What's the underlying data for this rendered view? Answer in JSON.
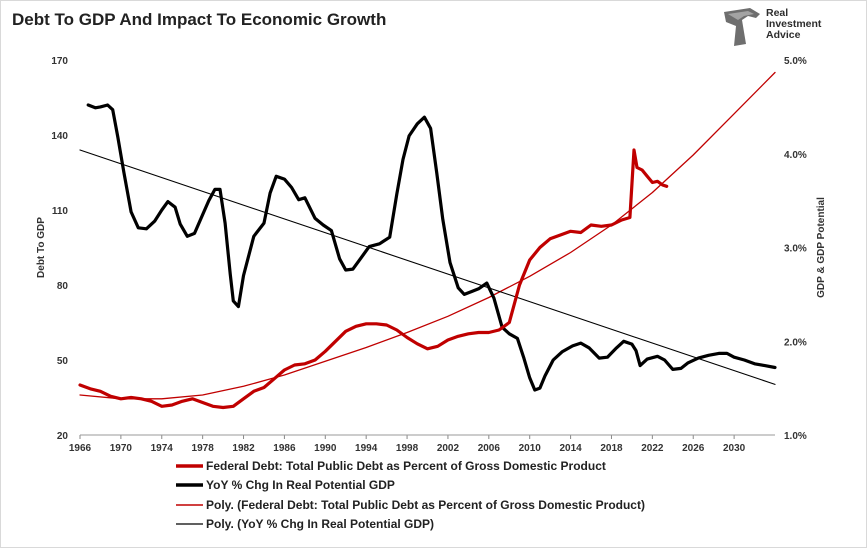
{
  "title": "Debt To GDP And Impact To Economic Growth",
  "logo": {
    "line1": "Real",
    "line2": "Investment",
    "line3": "Advice",
    "icon": "eagle-head-icon"
  },
  "colors": {
    "debt": "#c00000",
    "growth": "#000000",
    "debtTrend": "#c00000",
    "growthTrend": "#000000",
    "grid": "#d9d9d9"
  },
  "chart_data": {
    "type": "line",
    "title": "Debt To GDP And Impact To Economic Growth",
    "xlabel": "",
    "ylabel": "Debt To GDP",
    "y2label": "GDP & GDP Potential",
    "xlim": [
      1966,
      2034
    ],
    "ylim": [
      20,
      170
    ],
    "y2lim": [
      0.01,
      0.05
    ],
    "x_ticks": [
      1966,
      1970,
      1974,
      1978,
      1982,
      1986,
      1990,
      1994,
      1998,
      2002,
      2006,
      2010,
      2014,
      2018,
      2022,
      2026,
      2030
    ],
    "y_ticks": [
      20,
      50,
      80,
      110,
      140,
      170
    ],
    "y2_ticks": [
      "1.0%",
      "2.0%",
      "3.0%",
      "4.0%",
      "5.0%"
    ],
    "grid": false,
    "legend_position": "bottom",
    "series": [
      {
        "name": "Federal Debt: Total Public Debt as Percent of Gross Domestic Product",
        "axis": "left",
        "x": [
          1966,
          1967,
          1968,
          1969,
          1970,
          1971,
          1972,
          1973,
          1974,
          1975,
          1976,
          1977,
          1978,
          1979,
          1980,
          1981,
          1982,
          1983,
          1984,
          1985,
          1986,
          1987,
          1988,
          1989,
          1990,
          1991,
          1992,
          1993,
          1994,
          1995,
          1996,
          1997,
          1998,
          1999,
          2000,
          2001,
          2002,
          2003,
          2004,
          2005,
          2006,
          2007,
          2008,
          2009,
          2010,
          2011,
          2012,
          2013,
          2014,
          2015,
          2016,
          2017,
          2018,
          2019,
          2019.8,
          2020.2,
          2020.5,
          2021,
          2021.5,
          2022,
          2022.5,
          2023,
          2023.4
        ],
        "values": [
          40,
          38.5,
          37.5,
          35.5,
          34.5,
          35,
          34.5,
          33.5,
          31.5,
          32,
          33.5,
          34.5,
          33,
          31.5,
          31,
          31.5,
          34.5,
          37.5,
          39,
          42.5,
          46,
          48,
          48.5,
          50,
          53.5,
          57.5,
          61.5,
          63.5,
          64.5,
          64.5,
          64,
          62,
          59,
          56.5,
          54.5,
          55.5,
          58,
          59.5,
          60.5,
          61,
          61,
          62,
          65,
          80,
          90,
          95,
          98.5,
          100,
          101.5,
          101,
          104,
          103.5,
          104,
          106,
          107,
          134,
          127,
          126,
          123.5,
          121,
          121.5,
          120,
          119.5
        ]
      },
      {
        "name": "YoY % Chg In Real Potential GDP",
        "axis": "right",
        "x": [
          1966.8,
          1967.5,
          1968,
          1968.7,
          1969.2,
          1969.7,
          1970.3,
          1971,
          1971.7,
          1972.5,
          1973.3,
          1974,
          1974.6,
          1975.3,
          1975.8,
          1976.5,
          1977.2,
          1978,
          1978.6,
          1979.2,
          1979.7,
          1980.2,
          1980.7,
          1981,
          1981.5,
          1982,
          1983,
          1984,
          1984.6,
          1985.2,
          1986,
          1986.7,
          1987.4,
          1988,
          1989,
          1989.8,
          1990.6,
          1991.4,
          1992,
          1992.7,
          1993.5,
          1994.3,
          1995.3,
          1996.3,
          1997,
          1997.6,
          1998.2,
          1999,
          1999.7,
          2000.3,
          2000.9,
          2001.5,
          2002.2,
          2003,
          2003.6,
          2004.3,
          2005,
          2005.8,
          2006.5,
          2007.3,
          2008,
          2008.8,
          2009.4,
          2010,
          2010.5,
          2011,
          2011.5,
          2012.3,
          2013.2,
          2014.2,
          2015,
          2015.8,
          2016.8,
          2017.6,
          2018.5,
          2019.2,
          2020,
          2020.4,
          2020.8,
          2021.5,
          2022.5,
          2023.2,
          2024,
          2024.8,
          2025.5,
          2026.5,
          2027.5,
          2028.5,
          2029.3,
          2030,
          2031,
          2032,
          2033,
          2034
        ],
        "values": [
          0.0452,
          0.0449,
          0.045,
          0.0452,
          0.0447,
          0.0418,
          0.038,
          0.0338,
          0.0321,
          0.032,
          0.0328,
          0.034,
          0.0349,
          0.0343,
          0.0325,
          0.0312,
          0.0315,
          0.0335,
          0.035,
          0.0362,
          0.0362,
          0.0326,
          0.0272,
          0.0243,
          0.0237,
          0.027,
          0.0312,
          0.0326,
          0.0358,
          0.0376,
          0.0373,
          0.0364,
          0.0351,
          0.0353,
          0.0331,
          0.0324,
          0.0318,
          0.0288,
          0.0276,
          0.0277,
          0.0289,
          0.0301,
          0.0304,
          0.0311,
          0.0357,
          0.0394,
          0.0419,
          0.0432,
          0.0439,
          0.0427,
          0.038,
          0.033,
          0.0284,
          0.0257,
          0.025,
          0.0253,
          0.0256,
          0.0262,
          0.0246,
          0.0215,
          0.0208,
          0.0203,
          0.0183,
          0.0161,
          0.0148,
          0.015,
          0.0163,
          0.018,
          0.0189,
          0.0195,
          0.0198,
          0.0193,
          0.0182,
          0.0183,
          0.0193,
          0.02,
          0.0197,
          0.019,
          0.0174,
          0.0181,
          0.0184,
          0.018,
          0.017,
          0.0171,
          0.0177,
          0.0182,
          0.0185,
          0.0187,
          0.0187,
          0.0183,
          0.018,
          0.0176,
          0.0174,
          0.0172
        ]
      },
      {
        "name": "Poly. (Federal Debt: Total Public Debt as Percent of Gross Domestic Product)",
        "axis": "left",
        "trend": true,
        "x": [
          1966,
          1970,
          1974,
          1978,
          1982,
          1986,
          1990,
          1994,
          1998,
          2002,
          2006,
          2010,
          2014,
          2018,
          2022,
          2026,
          2030,
          2034
        ],
        "values": [
          36,
          34.5,
          34.5,
          36,
          39.5,
          44,
          49.5,
          55,
          61,
          67.5,
          75,
          83.5,
          93,
          104,
          117,
          132,
          148.5,
          165
        ]
      },
      {
        "name": "Poly. (YoY % Chg In Real Potential GDP)",
        "axis": "right",
        "trend": true,
        "x": [
          1966,
          2034
        ],
        "values": [
          0.0404,
          0.0154
        ]
      }
    ]
  }
}
